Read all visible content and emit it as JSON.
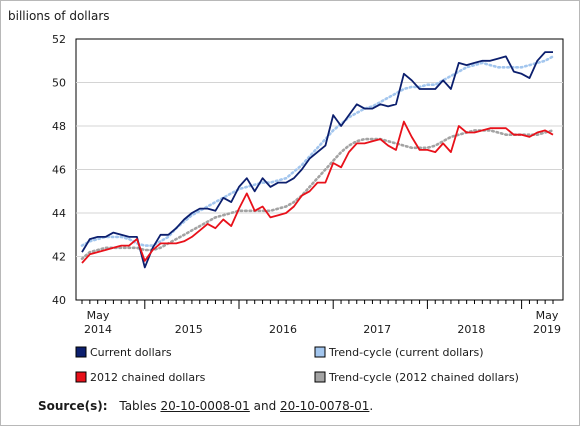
{
  "chart_data": {
    "type": "line",
    "ylabel": "billions of dollars",
    "ylim": [
      40,
      52
    ],
    "yticks": [
      40,
      42,
      44,
      46,
      48,
      50,
      52
    ],
    "x_start": "May 2014",
    "x_end": "May 2019",
    "x_tick_labels": [
      {
        "top": "May",
        "bottom": "2014"
      },
      {
        "top": "",
        "bottom": "2015"
      },
      {
        "top": "",
        "bottom": "2016"
      },
      {
        "top": "",
        "bottom": "2017"
      },
      {
        "top": "",
        "bottom": "2018"
      },
      {
        "top": "May",
        "bottom": "2019"
      }
    ],
    "x": [
      "2014-05",
      "2014-06",
      "2014-07",
      "2014-08",
      "2014-09",
      "2014-10",
      "2014-11",
      "2014-12",
      "2015-01",
      "2015-02",
      "2015-03",
      "2015-04",
      "2015-05",
      "2015-06",
      "2015-07",
      "2015-08",
      "2015-09",
      "2015-10",
      "2015-11",
      "2015-12",
      "2016-01",
      "2016-02",
      "2016-03",
      "2016-04",
      "2016-05",
      "2016-06",
      "2016-07",
      "2016-08",
      "2016-09",
      "2016-10",
      "2016-11",
      "2016-12",
      "2017-01",
      "2017-02",
      "2017-03",
      "2017-04",
      "2017-05",
      "2017-06",
      "2017-07",
      "2017-08",
      "2017-09",
      "2017-10",
      "2017-11",
      "2017-12",
      "2018-01",
      "2018-02",
      "2018-03",
      "2018-04",
      "2018-05",
      "2018-06",
      "2018-07",
      "2018-08",
      "2018-09",
      "2018-10",
      "2018-11",
      "2018-12",
      "2019-01",
      "2019-02",
      "2019-03",
      "2019-04",
      "2019-05"
    ],
    "series": [
      {
        "name": "Current dollars",
        "style": "solid",
        "color": "#0c1f6e",
        "values": [
          42.2,
          42.8,
          42.9,
          42.9,
          43.1,
          43.0,
          42.9,
          42.9,
          41.5,
          42.4,
          43.0,
          43.0,
          43.3,
          43.7,
          44.0,
          44.2,
          44.2,
          44.1,
          44.7,
          44.5,
          45.2,
          45.6,
          45.0,
          45.6,
          45.2,
          45.4,
          45.4,
          45.6,
          46.0,
          46.5,
          46.8,
          47.1,
          48.5,
          48.0,
          48.5,
          49.0,
          48.8,
          48.8,
          49.0,
          48.9,
          49.0,
          50.4,
          50.1,
          49.7,
          49.7,
          49.7,
          50.1,
          49.7,
          50.9,
          50.8,
          50.9,
          51.0,
          51.0,
          51.1,
          51.2,
          50.5,
          50.4,
          50.2,
          51.0,
          51.4,
          51.4
        ]
      },
      {
        "name": "Trend-cycle (current dollars)",
        "style": "dotted",
        "color": "#a3c6ee",
        "values": [
          42.5,
          42.7,
          42.8,
          42.9,
          42.9,
          42.9,
          42.8,
          42.6,
          42.5,
          42.5,
          42.7,
          42.9,
          43.3,
          43.6,
          43.9,
          44.1,
          44.3,
          44.5,
          44.7,
          44.9,
          45.1,
          45.2,
          45.3,
          45.4,
          45.4,
          45.5,
          45.6,
          45.9,
          46.2,
          46.6,
          47.0,
          47.4,
          47.8,
          48.1,
          48.4,
          48.6,
          48.8,
          48.9,
          49.1,
          49.3,
          49.5,
          49.7,
          49.8,
          49.8,
          49.9,
          49.9,
          50.1,
          50.3,
          50.5,
          50.7,
          50.8,
          50.9,
          50.8,
          50.7,
          50.7,
          50.7,
          50.7,
          50.8,
          50.9,
          51.0,
          51.2
        ]
      },
      {
        "name": "2012 chained dollars",
        "style": "solid",
        "color": "#e8111a",
        "values": [
          41.7,
          42.1,
          42.2,
          42.3,
          42.4,
          42.5,
          42.5,
          42.8,
          41.8,
          42.3,
          42.6,
          42.6,
          42.6,
          42.7,
          42.9,
          43.2,
          43.5,
          43.3,
          43.7,
          43.4,
          44.2,
          44.9,
          44.1,
          44.3,
          43.8,
          43.9,
          44.0,
          44.3,
          44.8,
          45.0,
          45.4,
          45.4,
          46.3,
          46.1,
          46.8,
          47.2,
          47.2,
          47.3,
          47.4,
          47.1,
          46.9,
          48.2,
          47.5,
          46.9,
          46.9,
          46.8,
          47.2,
          46.8,
          48.0,
          47.7,
          47.7,
          47.8,
          47.9,
          47.9,
          47.9,
          47.6,
          47.6,
          47.5,
          47.7,
          47.8,
          47.6
        ]
      },
      {
        "name": "Trend-cycle (2012 chained dollars)",
        "style": "dotted",
        "color": "#a3a3a3",
        "values": [
          41.9,
          42.2,
          42.3,
          42.4,
          42.4,
          42.4,
          42.4,
          42.4,
          42.3,
          42.3,
          42.4,
          42.6,
          42.8,
          43.0,
          43.2,
          43.4,
          43.6,
          43.8,
          43.9,
          44.0,
          44.1,
          44.1,
          44.1,
          44.1,
          44.1,
          44.2,
          44.3,
          44.5,
          44.8,
          45.2,
          45.6,
          46.0,
          46.4,
          46.8,
          47.1,
          47.3,
          47.4,
          47.4,
          47.4,
          47.3,
          47.2,
          47.1,
          47.0,
          47.0,
          47.0,
          47.1,
          47.3,
          47.5,
          47.6,
          47.7,
          47.8,
          47.8,
          47.8,
          47.7,
          47.6,
          47.6,
          47.6,
          47.6,
          47.6,
          47.7,
          47.8
        ]
      }
    ],
    "legend_position": "bottom"
  },
  "legend": [
    {
      "label": "Current dollars",
      "color": "#0c1f6e"
    },
    {
      "label": "Trend-cycle (current dollars)",
      "color": "#a3c6ee"
    },
    {
      "label": "2012 chained dollars",
      "color": "#e8111a"
    },
    {
      "label": "Trend-cycle (2012 chained dollars)",
      "color": "#a3a3a3"
    }
  ],
  "source": {
    "label": "Source(s):",
    "prefix": "Tables",
    "link1": "20-10-0008-01",
    "middle": "and",
    "link2": "20-10-0078-01",
    "suffix": "."
  }
}
